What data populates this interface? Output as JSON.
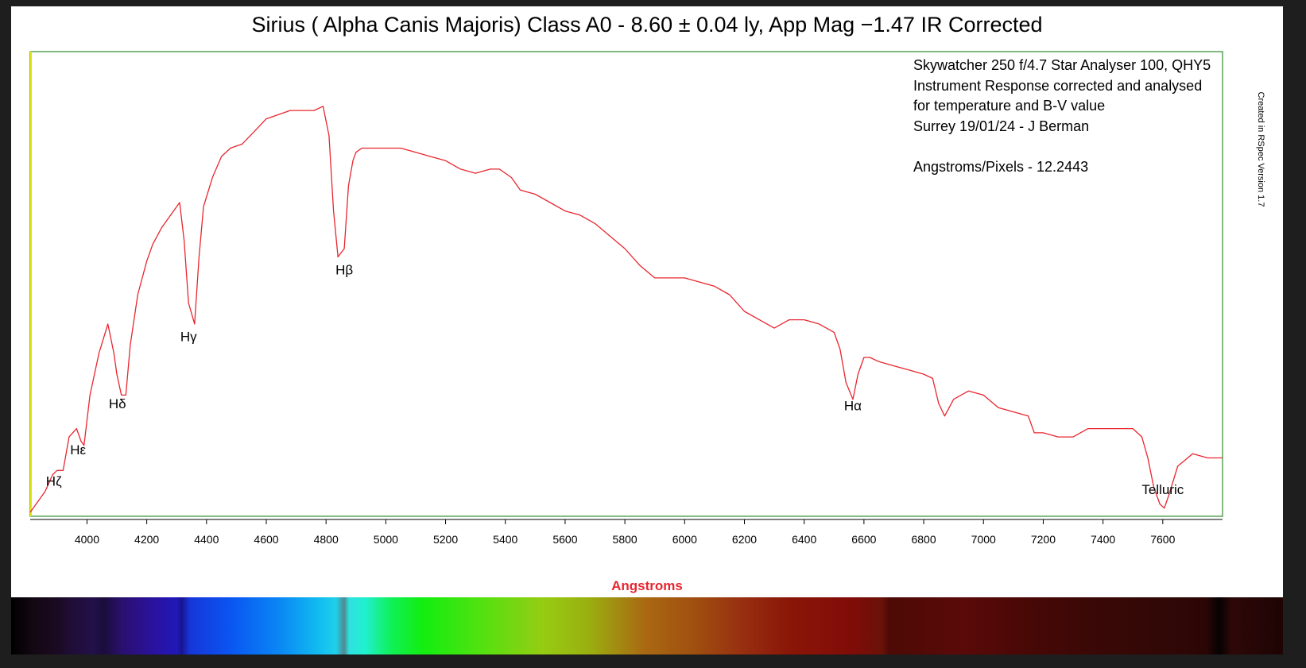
{
  "title": "Sirius ( Alpha Canis Majoris) Class A0 - 8.60 ± 0.04 ly, App Mag −1.47 IR Corrected",
  "notes": {
    "lines": [
      "Skywatcher 250 f/4.7 Star Analyser 100, QHY5",
      "Instrument Response corrected and analysed",
      "for temperature and B-V value",
      "Surrey 19/01/24 - J Berman",
      "",
      "Angstroms/Pixels - 12.2443"
    ],
    "vertical": "Created in RSpec Version 1.7"
  },
  "chart_data": {
    "type": "line",
    "title": "Sirius ( Alpha Canis Majoris) Class A0 - 8.60 ± 0.04 ly, App Mag −1.47 IR Corrected",
    "xlabel": "Angstroms",
    "ylabel": "",
    "xlim": [
      3810,
      7800
    ],
    "ylim": [
      0,
      1
    ],
    "grid": false,
    "x_ticks": [
      4000,
      4200,
      4400,
      4600,
      4800,
      5000,
      5200,
      5400,
      5600,
      5800,
      6000,
      6200,
      6400,
      6600,
      6800,
      7000,
      7200,
      7400,
      7600
    ],
    "series": [
      {
        "color": "#e8262f",
        "x": [
          3810,
          3860,
          3885,
          3900,
          3920,
          3940,
          3965,
          3980,
          3990,
          4010,
          4040,
          4070,
          4090,
          4100,
          4115,
          4130,
          4145,
          4170,
          4200,
          4220,
          4250,
          4280,
          4310,
          4325,
          4340,
          4360,
          4375,
          4390,
          4420,
          4450,
          4480,
          4520,
          4560,
          4600,
          4640,
          4680,
          4720,
          4760,
          4790,
          4810,
          4825,
          4840,
          4850,
          4861,
          4875,
          4890,
          4900,
          4920,
          4950,
          5000,
          5050,
          5100,
          5150,
          5200,
          5250,
          5300,
          5350,
          5380,
          5420,
          5450,
          5500,
          5550,
          5600,
          5650,
          5700,
          5750,
          5800,
          5850,
          5900,
          5950,
          6000,
          6050,
          6100,
          6150,
          6200,
          6250,
          6300,
          6350,
          6400,
          6450,
          6500,
          6520,
          6540,
          6563,
          6580,
          6600,
          6620,
          6650,
          6700,
          6750,
          6800,
          6830,
          6850,
          6870,
          6900,
          6950,
          7000,
          7050,
          7100,
          7150,
          7170,
          7200,
          7250,
          7300,
          7350,
          7400,
          7450,
          7500,
          7530,
          7550,
          7570,
          7590,
          7605,
          7620,
          7650,
          7700,
          7750,
          7800
        ],
        "values": [
          0,
          0.05,
          0.09,
          0.1,
          0.1,
          0.18,
          0.2,
          0.17,
          0.16,
          0.28,
          0.38,
          0.45,
          0.38,
          0.33,
          0.28,
          0.28,
          0.4,
          0.52,
          0.6,
          0.64,
          0.68,
          0.71,
          0.74,
          0.65,
          0.5,
          0.45,
          0.61,
          0.73,
          0.8,
          0.85,
          0.87,
          0.88,
          0.91,
          0.94,
          0.95,
          0.96,
          0.96,
          0.96,
          0.97,
          0.9,
          0.72,
          0.61,
          0.62,
          0.63,
          0.78,
          0.84,
          0.86,
          0.87,
          0.87,
          0.87,
          0.87,
          0.86,
          0.85,
          0.84,
          0.82,
          0.81,
          0.82,
          0.82,
          0.8,
          0.77,
          0.76,
          0.74,
          0.72,
          0.71,
          0.69,
          0.66,
          0.63,
          0.59,
          0.56,
          0.56,
          0.56,
          0.55,
          0.54,
          0.52,
          0.48,
          0.46,
          0.44,
          0.46,
          0.46,
          0.45,
          0.43,
          0.39,
          0.31,
          0.27,
          0.33,
          0.37,
          0.37,
          0.36,
          0.35,
          0.34,
          0.33,
          0.32,
          0.26,
          0.23,
          0.27,
          0.29,
          0.28,
          0.25,
          0.24,
          0.23,
          0.19,
          0.19,
          0.18,
          0.18,
          0.2,
          0.2,
          0.2,
          0.2,
          0.18,
          0.13,
          0.06,
          0.02,
          0.01,
          0.04,
          0.11,
          0.14,
          0.13,
          0.13
        ]
      }
    ],
    "annotations": [
      {
        "text": "Hζ",
        "x": 3889,
        "y": 0.075
      },
      {
        "text": "Hε",
        "x": 3970,
        "y": 0.15
      },
      {
        "text": "Hδ",
        "x": 4102,
        "y": 0.26
      },
      {
        "text": "Hγ",
        "x": 4340,
        "y": 0.42
      },
      {
        "text": "Hβ",
        "x": 4861,
        "y": 0.58
      },
      {
        "text": "Hα",
        "x": 6563,
        "y": 0.255
      },
      {
        "text": "Telluric",
        "x": 7600,
        "y": 0.055
      }
    ]
  },
  "spectrum": {
    "stops": [
      {
        "wl": 3810,
        "color": "#000000"
      },
      {
        "wl": 3880,
        "color": "#130813"
      },
      {
        "wl": 3960,
        "color": "#1c0a24"
      },
      {
        "wl": 4000,
        "color": "#200d38"
      },
      {
        "wl": 4070,
        "color": "#22104a"
      },
      {
        "wl": 4100,
        "color": "#1a0d3a"
      },
      {
        "wl": 4160,
        "color": "#2a1070"
      },
      {
        "wl": 4260,
        "color": "#2a12a0"
      },
      {
        "wl": 4330,
        "color": "#2018b8"
      },
      {
        "wl": 4345,
        "color": "#1a1490"
      },
      {
        "wl": 4370,
        "color": "#1636d8"
      },
      {
        "wl": 4500,
        "color": "#0a56f2"
      },
      {
        "wl": 4650,
        "color": "#0a86f4"
      },
      {
        "wl": 4780,
        "color": "#12bef0"
      },
      {
        "wl": 4830,
        "color": "#20d0e8"
      },
      {
        "wl": 4855,
        "color": "#508890"
      },
      {
        "wl": 4870,
        "color": "#30e0e0"
      },
      {
        "wl": 4920,
        "color": "#20f0d0"
      },
      {
        "wl": 5000,
        "color": "#10f05a"
      },
      {
        "wl": 5100,
        "color": "#12ee10"
      },
      {
        "wl": 5300,
        "color": "#58e010"
      },
      {
        "wl": 5480,
        "color": "#96cc12"
      },
      {
        "wl": 5620,
        "color": "#9ab010"
      },
      {
        "wl": 5800,
        "color": "#aa6812"
      },
      {
        "wl": 5950,
        "color": "#a05010"
      },
      {
        "wl": 6100,
        "color": "#983010"
      },
      {
        "wl": 6250,
        "color": "#8a1608"
      },
      {
        "wl": 6450,
        "color": "#800c08"
      },
      {
        "wl": 6540,
        "color": "#6a1208"
      },
      {
        "wl": 6565,
        "color": "#4e0a06"
      },
      {
        "wl": 6800,
        "color": "#5a0a08"
      },
      {
        "wl": 7000,
        "color": "#480806"
      },
      {
        "wl": 7200,
        "color": "#3a0806"
      },
      {
        "wl": 7450,
        "color": "#300806"
      },
      {
        "wl": 7560,
        "color": "#2a0605"
      },
      {
        "wl": 7600,
        "color": "#060202"
      },
      {
        "wl": 7640,
        "color": "#2e0808"
      },
      {
        "wl": 7800,
        "color": "#1e0404"
      }
    ]
  }
}
